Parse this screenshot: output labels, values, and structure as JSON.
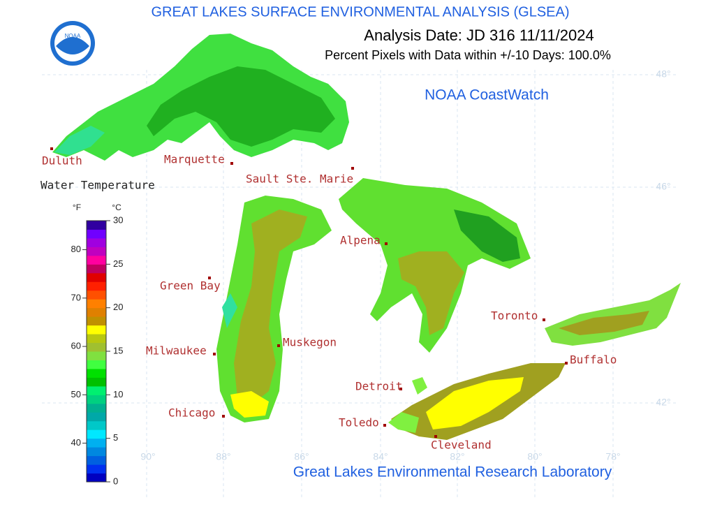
{
  "title": "GREAT LAKES SURFACE ENVIRONMENTAL ANALYSIS (GLSEA)",
  "logo_text": "NOAA",
  "analysis_date": "Analysis Date:  JD 316 11/11/2024",
  "percent_pixels": "Percent Pixels with Data within +/-10 Days: 100.0%",
  "source": "NOAA CoastWatch",
  "credit": "Great Lakes Environmental Research Laboratory",
  "cities": [
    "Duluth",
    "Marquette",
    "Sault Ste. Marie",
    "Alpena",
    "Green Bay",
    "Milwaukee",
    "Muskegon",
    "Chicago",
    "Detroit",
    "Toledo",
    "Cleveland",
    "Toronto",
    "Buffalo"
  ],
  "latitudes": [
    "48°",
    "46°",
    "42°"
  ],
  "longitudes": [
    "90°",
    "88°",
    "86°",
    "84°",
    "82°",
    "80°",
    "78°"
  ],
  "legend": {
    "title": "Water Temperature",
    "f_unit": "°F",
    "c_unit": "°C",
    "c_lim": [
      0,
      30
    ],
    "c_ticks": [
      0,
      5,
      10,
      15,
      20,
      25,
      30
    ],
    "f_lim": [
      32,
      86
    ],
    "f_ticks": [
      40,
      50,
      60,
      70,
      80
    ],
    "colors": [
      "#0000c0",
      "#0030f0",
      "#0060e0",
      "#0088e0",
      "#00b0f0",
      "#00e8ff",
      "#00c8c8",
      "#00a8a8",
      "#00b090",
      "#00d080",
      "#00f070",
      "#00c000",
      "#00e000",
      "#40ff40",
      "#80e040",
      "#a0c030",
      "#b8c810",
      "#ffff00",
      "#c09000",
      "#e08000",
      "#ff8000",
      "#ff5000",
      "#ff2000",
      "#e00000",
      "#c00060",
      "#ff00a0",
      "#c000c0",
      "#a000e0",
      "#7000ff",
      "#3000a0"
    ]
  }
}
